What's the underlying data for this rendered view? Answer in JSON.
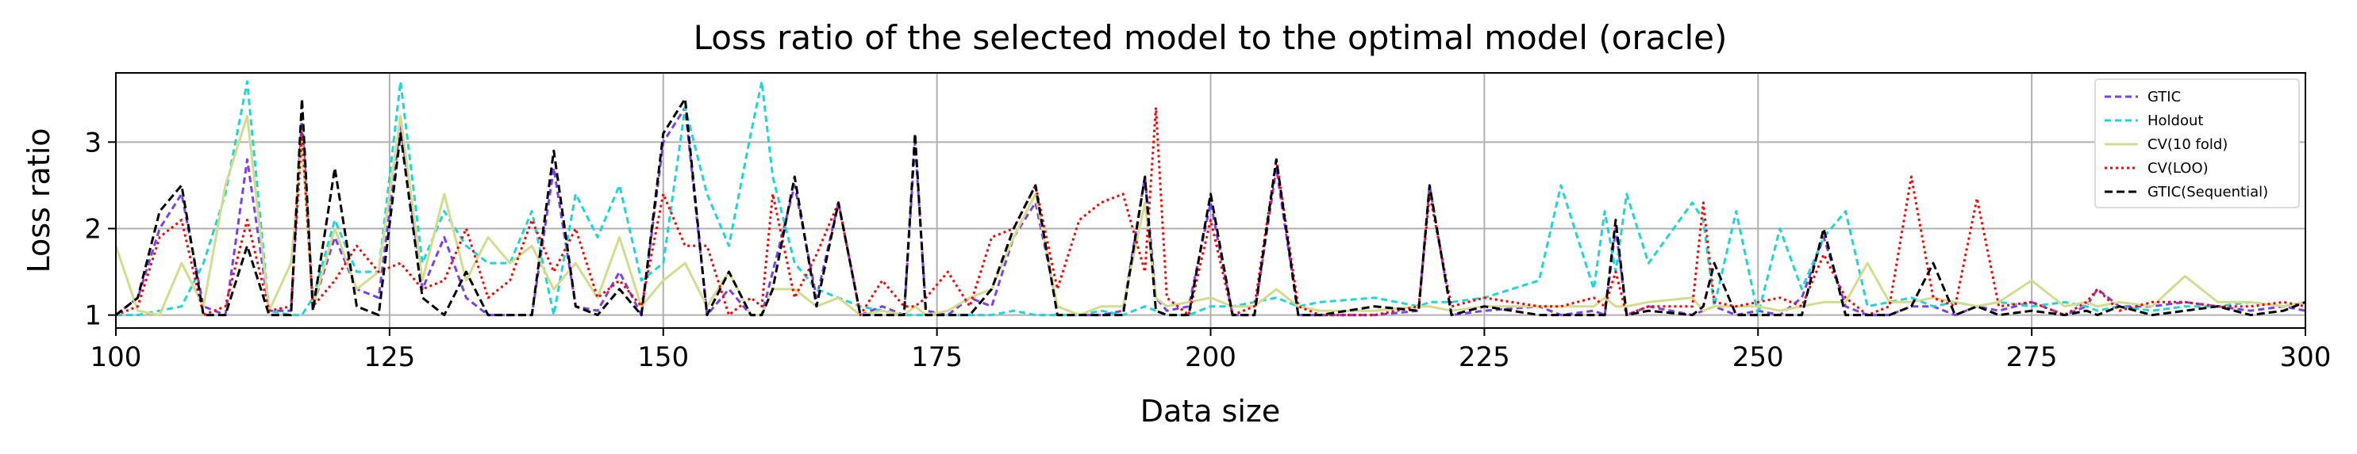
{
  "chart_data": {
    "type": "line",
    "title": "Loss ratio of the selected model to the optimal model (oracle)",
    "xlabel": "Data size",
    "ylabel": "Loss ratio",
    "xlim": [
      100,
      300
    ],
    "ylim": [
      0.85,
      3.8
    ],
    "x_ticks": [
      "100",
      "125",
      "150",
      "175",
      "200",
      "225",
      "250",
      "275",
      "300"
    ],
    "y_ticks": [
      "1",
      "2",
      "3"
    ],
    "grid": true,
    "legend_position": "top-right",
    "x": [
      100,
      102,
      104,
      106,
      108,
      110,
      112,
      114,
      116,
      117,
      118,
      120,
      122,
      124,
      126,
      128,
      130,
      132,
      134,
      136,
      138,
      140,
      142,
      144,
      146,
      148,
      150,
      152,
      154,
      156,
      158,
      159,
      160,
      162,
      164,
      166,
      168,
      170,
      172,
      173,
      174,
      176,
      178,
      180,
      182,
      184,
      186,
      188,
      190,
      192,
      194,
      195,
      196,
      198,
      200,
      202,
      204,
      206,
      208,
      210,
      215,
      219,
      220,
      222,
      225,
      230,
      232,
      235,
      236,
      237,
      238,
      240,
      244,
      245,
      246,
      248,
      250,
      252,
      254,
      256,
      258,
      260,
      262,
      264,
      266,
      268,
      270,
      272,
      275,
      278,
      280,
      281,
      283,
      286,
      289,
      292,
      295,
      298,
      300
    ],
    "series": [
      {
        "name": "GTIC",
        "color": "#7b3ff2",
        "dash": "8,5",
        "values": [
          1.0,
          1.2,
          2.0,
          2.4,
          1.1,
          1.0,
          2.8,
          1.05,
          1.05,
          3.3,
          1.1,
          1.9,
          1.3,
          1.2,
          3.2,
          1.3,
          1.9,
          1.2,
          1.0,
          1.0,
          1.0,
          2.7,
          1.1,
          1.05,
          1.5,
          1.0,
          3.0,
          3.4,
          1.0,
          1.3,
          1.0,
          1.0,
          1.5,
          2.5,
          1.2,
          2.3,
          1.0,
          1.1,
          1.0,
          3.0,
          1.05,
          1.0,
          1.2,
          1.1,
          1.9,
          2.3,
          1.1,
          1.0,
          1.0,
          1.05,
          2.6,
          1.2,
          1.05,
          1.1,
          2.3,
          1.0,
          1.0,
          2.7,
          1.0,
          1.0,
          1.0,
          1.05,
          2.5,
          1.0,
          1.05,
          1.1,
          1.0,
          1.05,
          1.0,
          2.0,
          1.0,
          1.1,
          1.0,
          1.05,
          1.1,
          1.0,
          1.05,
          1.0,
          1.2,
          1.9,
          1.1,
          1.0,
          1.0,
          1.1,
          1.1,
          1.0,
          1.1,
          1.05,
          1.15,
          1.0,
          1.1,
          1.3,
          1.1,
          1.1,
          1.15,
          1.1,
          1.05,
          1.1,
          1.05
        ]
      },
      {
        "name": "Holdout",
        "color": "#1cd7d7",
        "dash": "8,5",
        "values": [
          1.0,
          1.0,
          1.05,
          1.1,
          1.6,
          2.4,
          3.7,
          1.05,
          1.0,
          1.0,
          1.2,
          2.1,
          1.5,
          1.5,
          3.7,
          1.6,
          2.2,
          1.8,
          1.6,
          1.6,
          2.2,
          1.0,
          2.4,
          1.9,
          2.5,
          1.4,
          1.6,
          3.4,
          2.4,
          1.8,
          3.1,
          3.7,
          2.6,
          1.6,
          1.3,
          1.2,
          1.1,
          1.05,
          1.0,
          1.0,
          1.0,
          1.0,
          1.0,
          1.0,
          1.05,
          1.0,
          1.0,
          1.0,
          1.05,
          1.0,
          1.1,
          1.05,
          1.0,
          1.0,
          1.1,
          1.1,
          1.15,
          1.2,
          1.1,
          1.15,
          1.2,
          1.1,
          1.15,
          1.15,
          1.2,
          1.4,
          2.5,
          1.3,
          2.2,
          1.5,
          2.4,
          1.6,
          2.3,
          2.1,
          1.1,
          2.2,
          1.0,
          2.0,
          1.3,
          1.9,
          2.2,
          1.1,
          1.15,
          1.2,
          1.1,
          1.15,
          1.1,
          1.15,
          1.1,
          1.15,
          1.1,
          1.05,
          1.1,
          1.05,
          1.1,
          1.1,
          1.15,
          1.1,
          1.15
        ]
      },
      {
        "name": "CV(10 fold)",
        "color": "#d2dc8c",
        "dash": "",
        "values": [
          1.8,
          1.05,
          1.0,
          1.6,
          1.1,
          2.5,
          3.3,
          1.05,
          1.6,
          3.0,
          1.1,
          2.0,
          1.3,
          1.5,
          3.3,
          1.4,
          2.4,
          1.4,
          1.9,
          1.6,
          1.8,
          1.3,
          1.6,
          1.2,
          1.9,
          1.1,
          1.4,
          1.6,
          1.1,
          1.5,
          1.0,
          1.0,
          1.3,
          1.3,
          1.1,
          1.2,
          1.0,
          1.05,
          1.0,
          1.1,
          1.0,
          1.05,
          1.2,
          1.3,
          1.9,
          2.4,
          1.1,
          1.0,
          1.1,
          1.1,
          2.3,
          1.2,
          1.1,
          1.15,
          1.2,
          1.1,
          1.1,
          1.3,
          1.1,
          1.05,
          1.05,
          1.1,
          1.1,
          1.05,
          1.1,
          1.1,
          1.1,
          1.1,
          1.2,
          1.1,
          1.1,
          1.15,
          1.2,
          1.05,
          1.1,
          1.1,
          1.1,
          1.05,
          1.1,
          1.15,
          1.15,
          1.6,
          1.15,
          1.15,
          1.2,
          1.15,
          1.1,
          1.15,
          1.4,
          1.1,
          1.15,
          1.1,
          1.15,
          1.1,
          1.45,
          1.15,
          1.15,
          1.1,
          1.15
        ]
      },
      {
        "name": "CV(LOO)",
        "color": "#ff0000",
        "dash": "3,4",
        "values": [
          1.0,
          1.1,
          1.9,
          2.1,
          1.0,
          1.1,
          2.1,
          1.05,
          1.1,
          3.1,
          1.1,
          1.4,
          1.8,
          1.5,
          1.6,
          1.3,
          1.4,
          2.0,
          1.2,
          1.4,
          2.1,
          1.5,
          2.0,
          1.2,
          1.4,
          1.1,
          2.4,
          1.8,
          1.8,
          1.0,
          1.2,
          1.1,
          2.4,
          1.2,
          1.7,
          2.3,
          1.0,
          1.4,
          1.1,
          1.1,
          1.2,
          1.5,
          1.1,
          1.9,
          2.0,
          2.5,
          1.3,
          2.1,
          2.3,
          2.4,
          1.5,
          3.4,
          1.2,
          1.0,
          2.1,
          1.0,
          1.1,
          2.8,
          1.1,
          1.0,
          1.0,
          1.1,
          2.4,
          1.1,
          1.2,
          1.1,
          1.1,
          1.2,
          1.1,
          1.5,
          1.0,
          1.1,
          1.1,
          2.3,
          1.15,
          1.1,
          1.15,
          1.2,
          1.1,
          1.7,
          1.2,
          1.0,
          1.1,
          2.6,
          1.2,
          1.1,
          2.35,
          1.1,
          1.15,
          1.0,
          1.15,
          1.3,
          1.05,
          1.15,
          1.15,
          1.1,
          1.1,
          1.15,
          1.1
        ]
      },
      {
        "name": "GTIC(Sequential)",
        "color": "#000000",
        "dash": "10,5",
        "values": [
          1.0,
          1.2,
          2.2,
          2.5,
          1.0,
          1.0,
          1.8,
          1.0,
          1.0,
          3.5,
          1.05,
          2.7,
          1.1,
          1.0,
          3.1,
          1.2,
          1.0,
          1.5,
          1.0,
          1.0,
          1.0,
          2.9,
          1.1,
          1.0,
          1.3,
          1.0,
          3.1,
          3.5,
          1.0,
          1.5,
          1.0,
          1.0,
          1.3,
          2.6,
          1.1,
          2.3,
          1.0,
          1.0,
          1.0,
          3.1,
          1.0,
          1.0,
          1.0,
          1.3,
          2.0,
          2.5,
          1.0,
          1.0,
          1.0,
          1.0,
          2.6,
          1.05,
          1.0,
          1.0,
          2.4,
          1.0,
          1.0,
          2.8,
          1.0,
          1.0,
          1.1,
          1.05,
          2.5,
          1.0,
          1.1,
          1.0,
          1.0,
          1.0,
          1.0,
          2.1,
          1.0,
          1.05,
          1.0,
          1.1,
          1.6,
          1.0,
          1.0,
          1.0,
          1.0,
          2.0,
          1.0,
          1.0,
          1.0,
          1.1,
          1.6,
          1.0,
          1.1,
          1.0,
          1.05,
          1.0,
          1.05,
          1.0,
          1.1,
          1.0,
          1.05,
          1.1,
          1.0,
          1.05,
          1.15
        ]
      }
    ]
  }
}
